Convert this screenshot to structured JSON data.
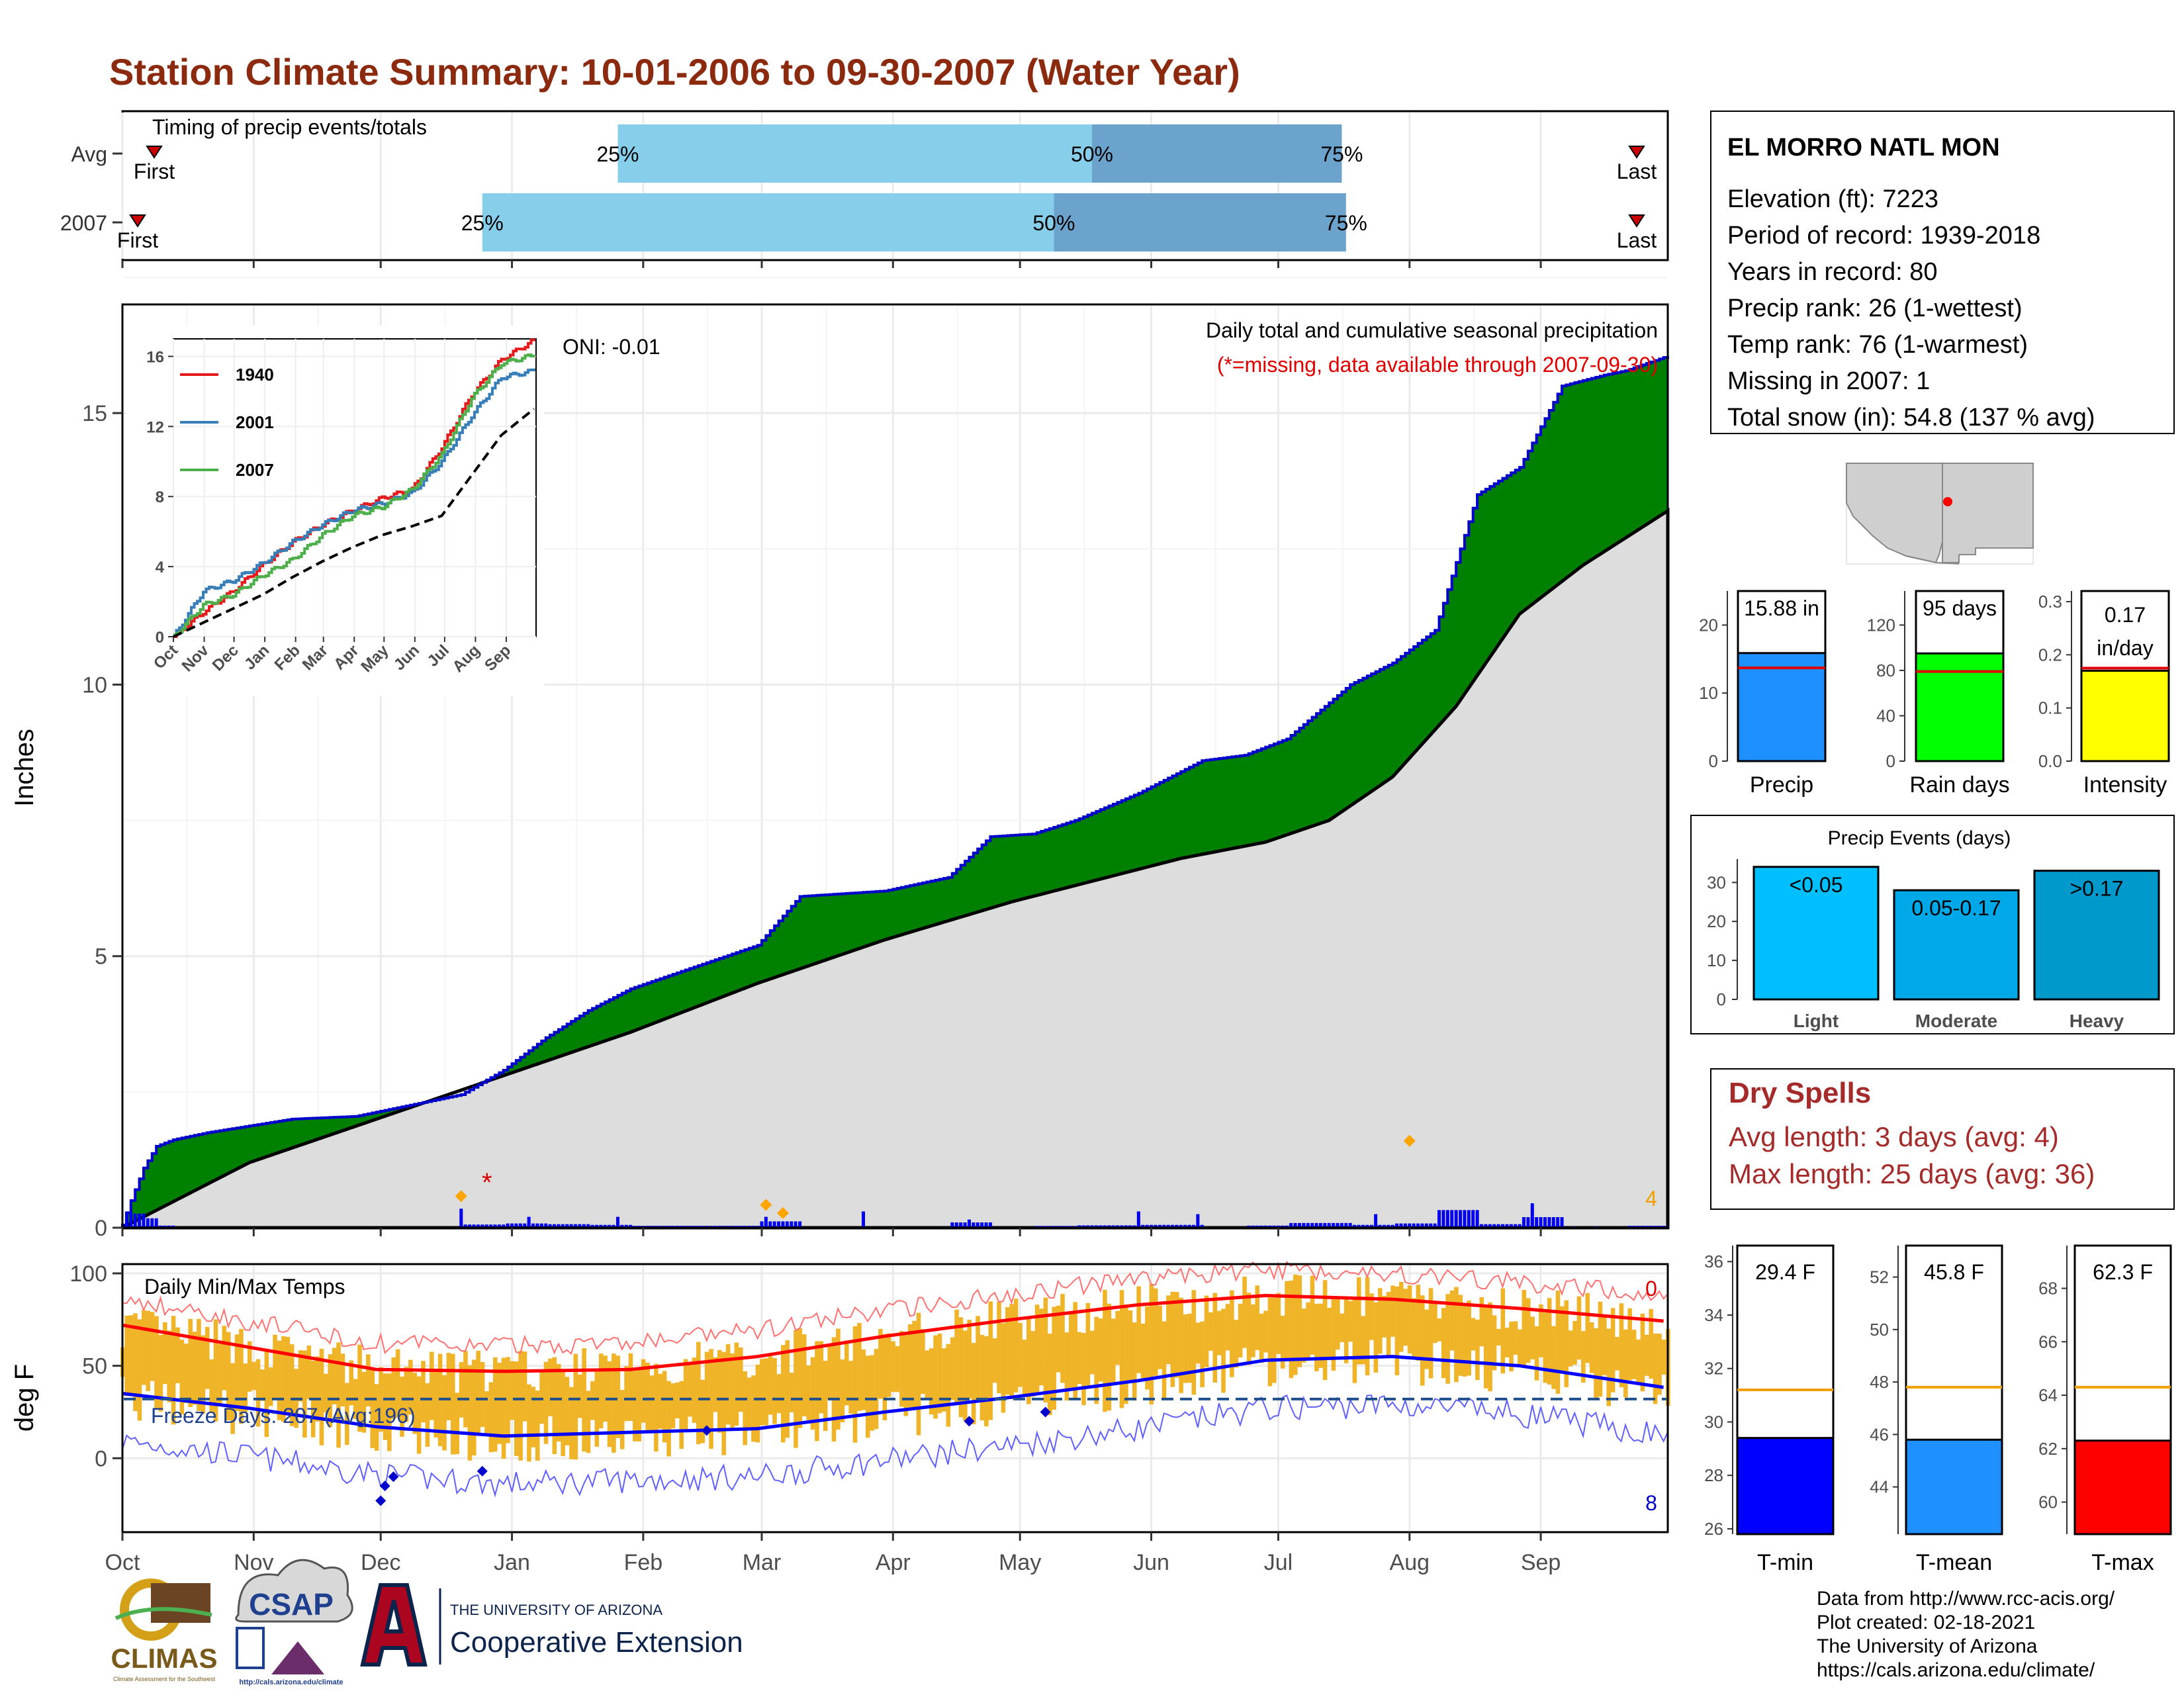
{
  "title": "Station Climate Summary: 10-01-2006 to 09-30-2007 (Water Year)",
  "colors": {
    "title": "#8B2A0E",
    "precip_fill": "#008000",
    "precip_line": "#0000CC",
    "normal_fill": "#DDDDDD",
    "q_light": "#87CEEB",
    "q_dark": "#6BA3CC",
    "tmax_line": "#FF0000",
    "tmin_line": "#0000FF",
    "temp_bar": "#F0B429",
    "dry_text": "#A52A2A"
  },
  "timing": {
    "title": "Timing of precip events/totals",
    "rows": [
      {
        "label": "Avg",
        "q25_day": 117,
        "q50_day": 229,
        "q75_day": 288,
        "first_label": "First",
        "last_label": "Last",
        "p25": "25%",
        "p50": "50%",
        "p75": "75%"
      },
      {
        "label": "2007",
        "q25_day": 85,
        "q50_day": 220,
        "q75_day": 289,
        "first_label": "First",
        "last_label": "Last",
        "p25": "25%",
        "p50": "50%",
        "p75": "75%"
      }
    ]
  },
  "main": {
    "ylabel": "Inches",
    "yticks": [
      0,
      5,
      10,
      15
    ],
    "ymax": 17,
    "months": [
      "Oct",
      "Nov",
      "Dec",
      "Jan",
      "Feb",
      "Mar",
      "Apr",
      "May",
      "Jun",
      "Jul",
      "Aug",
      "Sep"
    ],
    "oni": "ONI: -0.01",
    "caption1": "Daily total and cumulative seasonal precipitation",
    "caption2": "(*=missing, data available through 2007-09-30)",
    "missing_mark": "*",
    "count_label": "4"
  },
  "inset": {
    "yticks": [
      "0",
      "4",
      "8",
      "12",
      "16"
    ],
    "xticks": [
      "Oct",
      "Nov",
      "Dec",
      "Jan",
      "Feb",
      "Mar",
      "Apr",
      "May",
      "Jun",
      "Jul",
      "Aug",
      "Sep"
    ],
    "legend": [
      {
        "name": "1940",
        "color": "#E41A1C"
      },
      {
        "name": "2001",
        "color": "#377EB8"
      },
      {
        "name": "2007",
        "color": "#4DAF4A"
      }
    ]
  },
  "temps": {
    "ylabel": "deg F",
    "title": "Daily Min/Max Temps",
    "yticks": [
      0,
      50,
      100
    ],
    "freeze_text": "Freeze Days: 207 (Avg:196)",
    "count_hot": "0",
    "count_cold": "8"
  },
  "station": {
    "name": "EL MORRO NATL MON",
    "lines": [
      "Elevation (ft): 7223",
      "Period of record: 1939-2018",
      "Years in record: 80",
      "Precip rank: 26 (1-wettest)",
      "Temp rank: 76 (1-warmest)",
      "Missing in 2007: 1",
      "Total snow (in): 54.8 (137 % avg)"
    ]
  },
  "precip_stats": [
    {
      "label": "Precip",
      "value_label": "15.88 in",
      "value": 15.88,
      "avg": 13.7,
      "ymax": 25,
      "ticks": [
        "0",
        "10",
        "20"
      ],
      "tick_vals": [
        0,
        10,
        20
      ],
      "color": "#1E90FF"
    },
    {
      "label": "Rain days",
      "value_label": "95 days",
      "value": 95,
      "avg": 79,
      "ymax": 150,
      "ticks": [
        "0",
        "40",
        "80",
        "120"
      ],
      "tick_vals": [
        0,
        40,
        80,
        120
      ],
      "color": "#00FF00"
    },
    {
      "label": "Intensity",
      "value_label_1": "0.17",
      "value_label_2": "in/day",
      "value": 0.17,
      "avg": 0.175,
      "ymax": 0.32,
      "ticks": [
        "0.0",
        "0.1",
        "0.2",
        "0.3"
      ],
      "tick_vals": [
        0,
        0.1,
        0.2,
        0.3
      ],
      "color": "#FFFF00"
    }
  ],
  "precip_events": {
    "title": "Precip Events (days)",
    "ticks": [
      "0",
      "10",
      "20",
      "30"
    ],
    "tick_vals": [
      0,
      10,
      20,
      30
    ],
    "ymax": 36,
    "bars": [
      {
        "label": "Light",
        "value_label": "<0.05",
        "value": 34,
        "color": "#00BFFF"
      },
      {
        "label": "Moderate",
        "value_label": "0.05-0.17",
        "value": 28,
        "color": "#00A8E8"
      },
      {
        "label": "Heavy",
        "value_label": ">0.17",
        "value": 33,
        "color": "#0099CC"
      }
    ]
  },
  "dry_spells": {
    "title": "Dry Spells",
    "avg_line": "Avg length: 3 days (avg: 4)",
    "max_line": "Max length: 25 days (avg: 36)"
  },
  "temp_stats": [
    {
      "label": "T-min",
      "value_label": "29.4 F",
      "value": 29.4,
      "avg": 31.2,
      "ymin": 25.8,
      "ymax": 36.6,
      "ticks": [
        "26",
        "28",
        "30",
        "32",
        "34",
        "36"
      ],
      "tick_vals": [
        26,
        28,
        30,
        32,
        34,
        36
      ],
      "color": "#0000FF"
    },
    {
      "label": "T-mean",
      "value_label": "45.8 F",
      "value": 45.8,
      "avg": 47.8,
      "ymin": 42.2,
      "ymax": 53.2,
      "ticks": [
        "44",
        "46",
        "48",
        "50",
        "52"
      ],
      "tick_vals": [
        44,
        46,
        48,
        50,
        52
      ],
      "color": "#1E90FF"
    },
    {
      "label": "T-max",
      "value_label": "62.3 F",
      "value": 62.3,
      "avg": 64.3,
      "ymin": 58.8,
      "ymax": 69.6,
      "ticks": [
        "60",
        "62",
        "64",
        "66",
        "68"
      ],
      "tick_vals": [
        60,
        62,
        64,
        66,
        68
      ],
      "color": "#FF0000"
    }
  ],
  "footer": {
    "lines": [
      "Data from http://www.rcc-acis.org/",
      "Plot created: 02-18-2021",
      "The University of Arizona",
      "https://cals.arizona.edu/climate/"
    ],
    "climas": "CLIMAS",
    "climas_sub": "Climate Assessment for the Southwest",
    "csap": "CSAP",
    "csap_url": "http://cals.arizona.edu/climate",
    "ua_small": "THE UNIVERSITY OF ARIZONA",
    "ua_big": "Cooperative Extension"
  },
  "chart_data": [
    {
      "type": "area",
      "title": "Daily total and cumulative seasonal precipitation",
      "ylabel": "Inches",
      "ylim": [
        0,
        17
      ],
      "x_unit": "day of water year",
      "series": [
        {
          "name": "",
          "x": [
            0,
            2,
            5,
            8,
            12,
            20,
            40,
            55,
            80,
            90,
            100,
            110,
            120,
            150,
            160,
            170,
            180,
            195,
            205,
            215,
            225,
            240,
            255,
            265,
            275,
            290,
            300,
            310,
            320,
            330,
            340,
            350,
            355,
            365
          ],
          "values": [
            0.05,
            0.5,
            1.1,
            1.5,
            1.62,
            1.75,
            2.0,
            2.05,
            2.45,
            2.9,
            3.5,
            4.0,
            4.4,
            5.2,
            6.1,
            6.15,
            6.2,
            6.45,
            7.2,
            7.25,
            7.5,
            8.0,
            8.6,
            8.7,
            9.0,
            10.0,
            10.4,
            11.0,
            13.5,
            14.0,
            15.5,
            15.7,
            15.78,
            16.05
          ]
        },
        {
          "name": "",
          "x": [
            0,
            30,
            60,
            90,
            120,
            150,
            180,
            210,
            230,
            250,
            270,
            285,
            300,
            315,
            330,
            345,
            365
          ],
          "values": [
            0,
            1.2,
            2.0,
            2.8,
            3.6,
            4.5,
            5.3,
            6.0,
            6.4,
            6.8,
            7.1,
            7.5,
            8.3,
            9.6,
            11.3,
            12.2,
            13.2
          ]
        }
      ]
    },
    {
      "type": "line",
      "title": "",
      "xlabel": "",
      "ylim": [
        0,
        17
      ],
      "series": [
        {
          "name": "1940",
          "x": [
            0,
            30,
            60,
            90,
            120,
            150,
            180,
            210,
            240,
            270,
            300,
            330,
            365
          ],
          "values": [
            0,
            1.4,
            2.6,
            4.1,
            5.4,
            6.4,
            7.2,
            7.9,
            8.4,
            10.8,
            13.8,
            15.8,
            17.0
          ]
        },
        {
          "name": "2001",
          "x": [
            0,
            30,
            60,
            90,
            120,
            150,
            180,
            210,
            240,
            270,
            300,
            330,
            365
          ],
          "values": [
            0,
            2.6,
            3.2,
            4.2,
            5.4,
            6.4,
            7.2,
            7.6,
            8.2,
            10.0,
            12.6,
            14.8,
            15.2
          ]
        },
        {
          "name": "2007",
          "x": [
            0,
            30,
            60,
            90,
            120,
            150,
            180,
            210,
            240,
            270,
            300,
            330,
            365
          ],
          "values": [
            0,
            1.8,
            2.4,
            3.5,
            4.4,
            5.8,
            6.9,
            7.4,
            8.4,
            10.4,
            13.6,
            15.6,
            16.1
          ]
        },
        {
          "name": "",
          "x": [
            0,
            30,
            60,
            90,
            120,
            150,
            180,
            210,
            240,
            270,
            300,
            330,
            365
          ],
          "values": [
            0,
            0.8,
            1.6,
            2.4,
            3.4,
            4.3,
            5.1,
            5.8,
            6.3,
            6.9,
            9.2,
            11.5,
            13.1
          ]
        }
      ]
    },
    {
      "type": "bar",
      "title": "Daily Min/Max Temps",
      "ylabel": "deg F",
      "ylim": [
        -40,
        105
      ],
      "series": [
        {
          "name": "",
          "x": [
            0,
            30,
            60,
            90,
            120,
            150,
            180,
            210,
            240,
            270,
            300,
            330,
            365
          ],
          "values": [
            72,
            60,
            48,
            47,
            48,
            55,
            66,
            75,
            83,
            88,
            86,
            81,
            74
          ]
        },
        {
          "name": "",
          "x": [
            0,
            30,
            60,
            90,
            120,
            150,
            180,
            210,
            240,
            270,
            300,
            330,
            365
          ],
          "values": [
            35,
            27,
            17,
            12,
            14,
            16,
            25,
            33,
            42,
            53,
            55,
            50,
            38
          ]
        }
      ]
    }
  ]
}
